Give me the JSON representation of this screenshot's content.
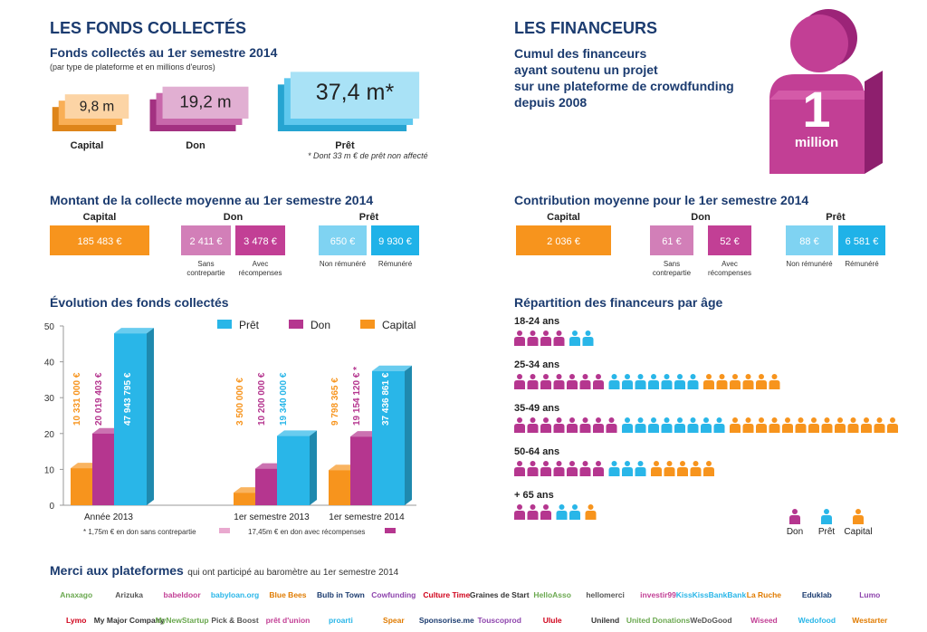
{
  "left": {
    "title": "LES FONDS COLLECTÉS",
    "subtitle": "Fonds collectés au 1er semestre 2014",
    "note": "(par type de plateforme et en millions d'euros)",
    "totals": [
      {
        "label": "Capital",
        "value": 9.8,
        "value_label": "9,8 m",
        "color": "#f7941d"
      },
      {
        "label": "Don",
        "value": 19.2,
        "value_label": "19,2 m",
        "color": "#b5368f"
      },
      {
        "label": "Prêt",
        "value": 37.4,
        "value_label": "37,4 m*",
        "color": "#29b6e8"
      }
    ],
    "footnote": "* Dont 33 m € de prêt non affecté",
    "average": {
      "title": "Montant de la collecte moyenne au 1er semestre 2014",
      "groups": [
        {
          "label": "Capital",
          "boxes": [
            {
              "amount": "185 483 €"
            }
          ]
        },
        {
          "label": "Don",
          "boxes": [
            {
              "amount": "2 411 €",
              "caption": [
                "Sans",
                "contrepartie"
              ]
            },
            {
              "amount": "3 478 €",
              "caption": [
                "Avec",
                "récompenses"
              ]
            }
          ]
        },
        {
          "label": "Prêt",
          "boxes": [
            {
              "amount": "650 €",
              "caption": [
                "Non rémunéré"
              ]
            },
            {
              "amount": "9 930 €",
              "caption": [
                "Rémunéré"
              ]
            }
          ]
        }
      ]
    }
  },
  "right": {
    "title": "LES FINANCEURS",
    "lines": [
      "Cumul des financeurs",
      "ayant soutenu un projet",
      "sur une plateforme de crowdfunding",
      "depuis 2008"
    ],
    "big_number": "1",
    "big_unit": "million",
    "average": {
      "title": "Contribution moyenne pour le 1er semestre 2014",
      "groups": [
        {
          "label": "Capital",
          "boxes": [
            {
              "amount": "2 036 €"
            }
          ]
        },
        {
          "label": "Don",
          "boxes": [
            {
              "amount": "61 €",
              "caption": [
                "Sans",
                "contrepartie"
              ]
            },
            {
              "amount": "52 €",
              "caption": [
                "Avec",
                "récompenses"
              ]
            }
          ]
        },
        {
          "label": "Prêt",
          "boxes": [
            {
              "amount": "88 €",
              "caption": [
                "Non rémunéré"
              ]
            },
            {
              "amount": "6 581 €",
              "caption": [
                "Rémunéré"
              ]
            }
          ]
        }
      ]
    }
  },
  "chart_data": [
    {
      "type": "bar",
      "title": "Évolution des fonds collectés",
      "categories": [
        "Année 2013",
        "1er semestre 2013",
        "1er semestre 2014"
      ],
      "series": [
        {
          "name": "Capital",
          "color": "#f7941d",
          "values": [
            10.331,
            3.5,
            9.798365
          ],
          "value_labels": [
            "10 331 000 €",
            "3 500 000 €",
            "9 798 365 €"
          ]
        },
        {
          "name": "Don",
          "color": "#b5368f",
          "values": [
            20.019403,
            10.2,
            19.15412
          ],
          "value_labels": [
            "20 019 403 €",
            "10 200 000 €",
            "19 154 120 € *"
          ]
        },
        {
          "name": "Prêt",
          "color": "#29b6e8",
          "values": [
            47.943795,
            19.34,
            37.436861
          ],
          "value_labels": [
            "47 943 795 €",
            "19 340 000 €",
            "37 436 861 €"
          ]
        }
      ],
      "ylim": [
        0,
        50
      ],
      "yticks": [
        0,
        10,
        20,
        30,
        40,
        50
      ],
      "notes": [
        {
          "label": "* 1,75m € en don sans contrepartie",
          "color": "#e9a9cf"
        },
        {
          "label": "17,45m € en don avec récompenses",
          "color": "#b5368f"
        }
      ]
    },
    {
      "type": "pictogram",
      "title": "Répartition des financeurs par âge",
      "categories": [
        "18-24 ans",
        "25-34 ans",
        "35-49 ans",
        "50-64 ans",
        "+ 65 ans"
      ],
      "series": [
        {
          "name": "Don",
          "color": "#b5368f",
          "values": [
            4,
            7,
            8,
            7,
            3
          ]
        },
        {
          "name": "Prêt",
          "color": "#29b6e8",
          "values": [
            2,
            7,
            8,
            3,
            2
          ]
        },
        {
          "name": "Capital",
          "color": "#f7941d",
          "values": [
            0,
            6,
            13,
            5,
            1
          ]
        }
      ]
    }
  ],
  "thanks": {
    "title": "Merci aux plateformes",
    "text": "qui ont participé au baromètre au 1er semestre 2014",
    "platforms": [
      "Anaxago",
      "Arizuka",
      "babeldoor",
      "babyloan.org",
      "Blue Bees",
      "Bulb in Town",
      "Cowfunding",
      "Culture Time",
      "Graines de Start",
      "HelloAsso",
      "hellomerci",
      "investir99",
      "KissKissBankBank",
      "La Ruche",
      "Eduklab",
      "Lumo",
      "Lymo",
      "My Major Company",
      "MyNewStartup",
      "Pick & Boost",
      "prêt d'union",
      "proarti",
      "Spear",
      "Sponsorise.me",
      "Touscoprod",
      "Ulule",
      "Unilend",
      "United Donations",
      "WeDoGood",
      "Wiseed",
      "Wedofood",
      "Westarter"
    ]
  }
}
